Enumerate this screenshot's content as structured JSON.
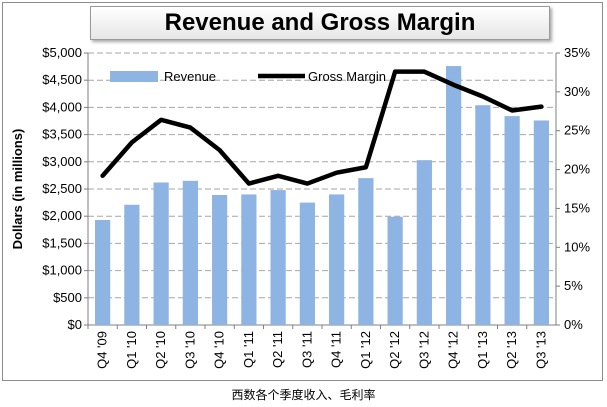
{
  "chart_data": {
    "type": "bar",
    "title": "Revenue and Gross Margin",
    "ylabel": "Dollars (in millions)",
    "categories": [
      "Q4 '09",
      "Q1 '10",
      "Q2 '10",
      "Q3 '10",
      "Q4 '10",
      "Q1 '11",
      "Q2 '11",
      "Q3 '11",
      "Q4 '11",
      "Q1 '12",
      "Q2 '12",
      "Q3 '12",
      "Q4 '12",
      "Q1 '13",
      "Q2 '13",
      "Q3 '13"
    ],
    "series": [
      {
        "name": "Revenue",
        "type": "bar",
        "axis": "left",
        "color": "#8db4e2",
        "values": [
          1930,
          2210,
          2620,
          2650,
          2390,
          2400,
          2480,
          2250,
          2400,
          2700,
          1990,
          3030,
          4760,
          4040,
          3840,
          3760
        ]
      },
      {
        "name": "Gross Margin",
        "type": "line",
        "axis": "right",
        "color": "#000000",
        "values": [
          19.2,
          23.5,
          26.4,
          25.4,
          22.5,
          18.2,
          19.2,
          18.2,
          19.6,
          20.3,
          32.6,
          32.6,
          30.9,
          29.4,
          27.6,
          28.1
        ]
      }
    ],
    "y_left": {
      "min": 0,
      "max": 5000,
      "step": 500,
      "format": "dollar"
    },
    "y_right": {
      "min": 0,
      "max": 35,
      "step": 5,
      "format": "percent"
    },
    "grid": true,
    "legend_position": "top-left"
  },
  "caption": "西数各个季度收入、毛利率"
}
